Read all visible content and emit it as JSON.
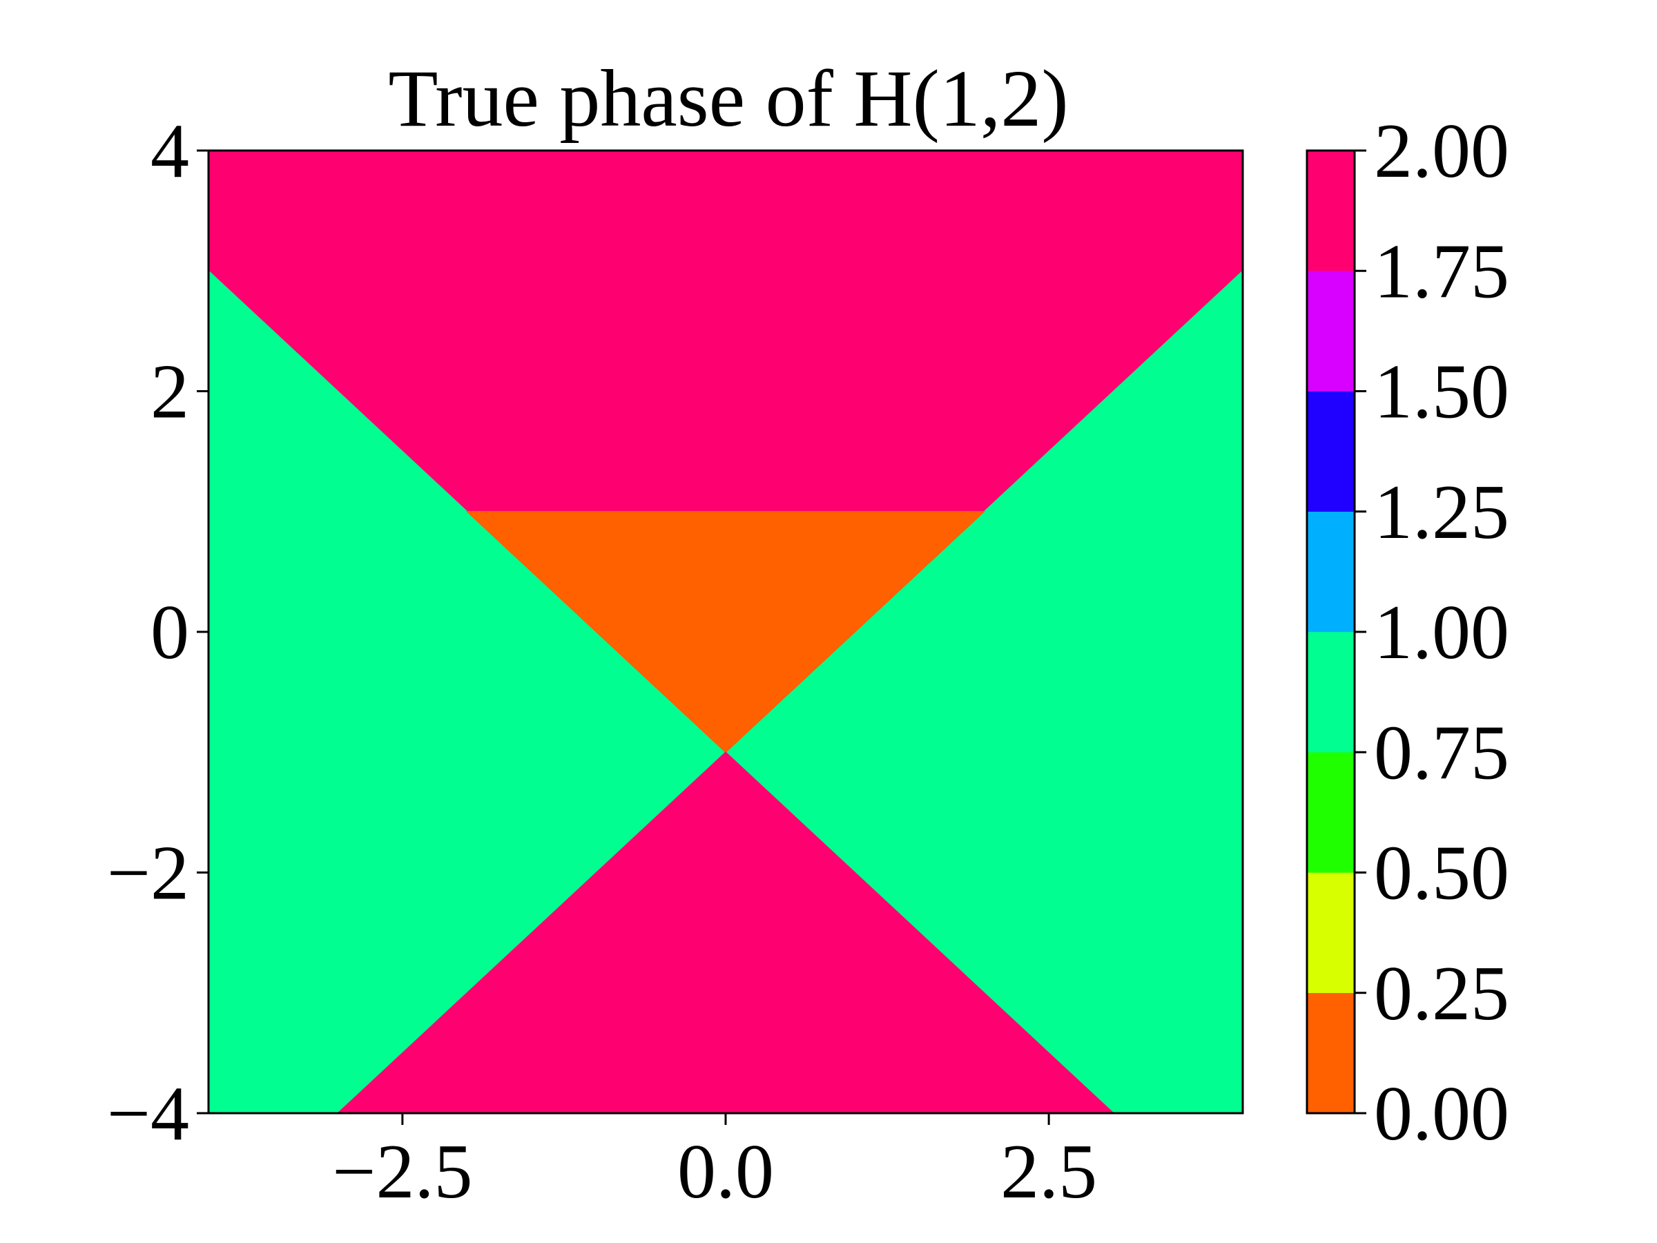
{
  "chart_data": {
    "type": "heatmap",
    "title": "True phase of H(1,2)",
    "xlabel": "",
    "ylabel": "",
    "xlim": [
      -4,
      4
    ],
    "ylim": [
      -4,
      4
    ],
    "grid": false,
    "x_ticks": [
      -2.5,
      0.0,
      2.5
    ],
    "x_tick_labels": [
      "−2.5",
      "0.0",
      "2.5"
    ],
    "y_ticks": [
      -4,
      -2,
      0,
      2,
      4
    ],
    "y_tick_labels": [
      "−4",
      "−2",
      "0",
      "2",
      "4"
    ],
    "regions": [
      {
        "value": 1.875,
        "color": "#ff0070",
        "polygon": [
          [
            -4,
            4
          ],
          [
            4,
            4
          ],
          [
            4,
            3
          ],
          [
            2,
            1
          ],
          [
            -2,
            1
          ],
          [
            -4,
            3
          ]
        ]
      },
      {
        "value": 0.875,
        "color": "#00ff90",
        "polygon": [
          [
            -4,
            3
          ],
          [
            -2,
            1
          ],
          [
            0,
            -1
          ],
          [
            -3,
            -4
          ],
          [
            -4,
            -4
          ]
        ]
      },
      {
        "value": 0.875,
        "color": "#00ff90",
        "polygon": [
          [
            4,
            3
          ],
          [
            2,
            1
          ],
          [
            0,
            -1
          ],
          [
            3,
            -4
          ],
          [
            4,
            -4
          ]
        ]
      },
      {
        "value": 0.125,
        "color": "#ff6000",
        "polygon": [
          [
            -2,
            1
          ],
          [
            2,
            1
          ],
          [
            0,
            -1
          ]
        ]
      },
      {
        "value": 1.875,
        "color": "#ff0070",
        "polygon": [
          [
            0,
            -1
          ],
          [
            3,
            -4
          ],
          [
            -3,
            -4
          ]
        ]
      }
    ],
    "colorbar": {
      "min": 0.0,
      "max": 2.0,
      "boundaries": [
        0.0,
        0.25,
        0.5,
        0.75,
        1.0,
        1.25,
        1.5,
        1.75,
        2.0
      ],
      "colors": [
        "#ff6000",
        "#d8ff00",
        "#20ff00",
        "#00ff90",
        "#00b0ff",
        "#2000ff",
        "#d800ff",
        "#ff0070"
      ],
      "tick_values": [
        0.0,
        0.25,
        0.5,
        0.75,
        1.0,
        1.25,
        1.5,
        1.75,
        2.0
      ],
      "tick_labels": [
        "0.00",
        "0.25",
        "0.50",
        "0.75",
        "1.00",
        "1.25",
        "1.50",
        "1.75",
        "2.00"
      ]
    }
  }
}
